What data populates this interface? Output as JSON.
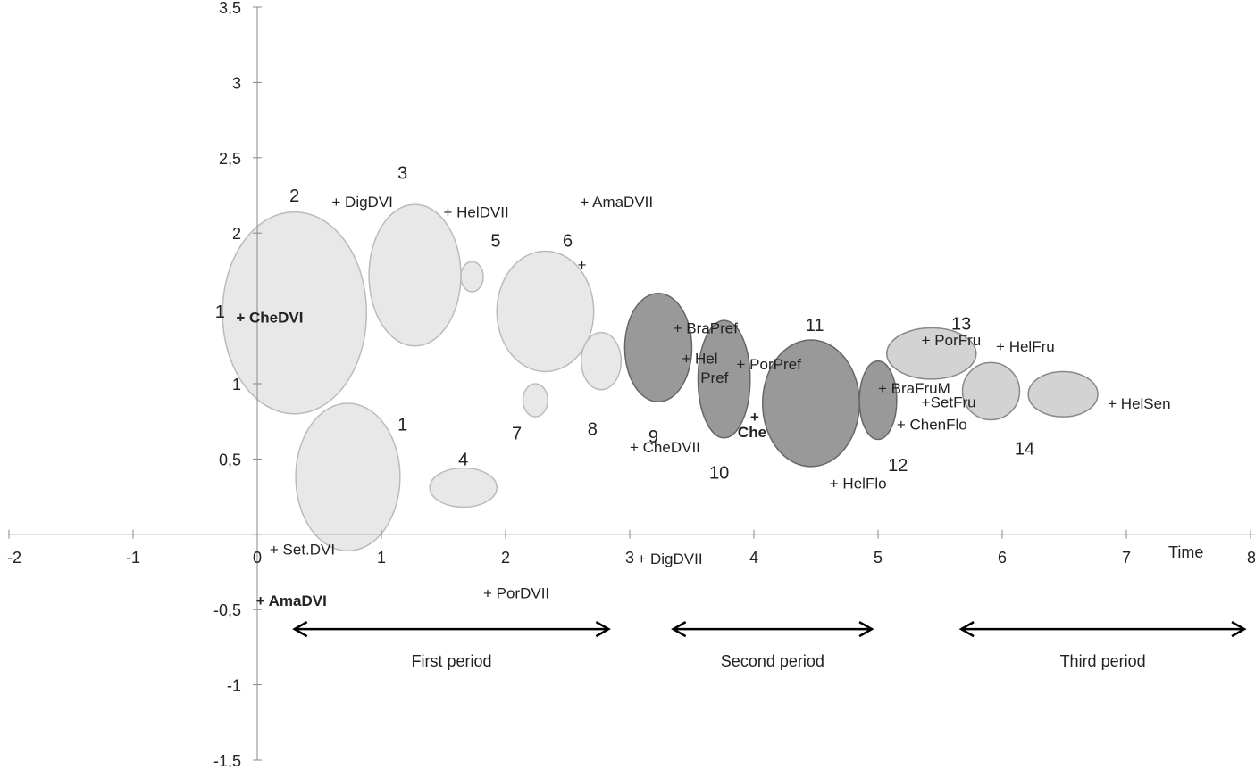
{
  "chart_data": {
    "type": "bubble",
    "x_axis": {
      "title": "Time",
      "range": [
        -2,
        8
      ],
      "ticks": [
        "-2",
        "-1",
        "0",
        "1",
        "2",
        "3",
        "4",
        "5",
        "6",
        "7",
        "8"
      ]
    },
    "y_axis": {
      "range": [
        -1.5,
        3.5
      ],
      "ticks": [
        "3,5",
        "3",
        "2,5",
        "2",
        "1",
        "0,5",
        "0",
        "-0,5",
        "-1",
        "-1,5"
      ]
    },
    "grid": false,
    "legend": "none",
    "bubbles": [
      {
        "label": "2",
        "cx": 0.3,
        "cy": 1.47,
        "rx": 0.58,
        "ry": 0.67,
        "fill": "#e8e8e8",
        "stroke": "#bbbbbb"
      },
      {
        "label": "1",
        "cx": 0.73,
        "cy": 0.38,
        "rx": 0.42,
        "ry": 0.49,
        "fill": "#e8e8e8",
        "stroke": "#bbbbbb"
      },
      {
        "label": "3",
        "cx": 1.27,
        "cy": 1.72,
        "rx": 0.37,
        "ry": 0.47,
        "fill": "#e8e8e8",
        "stroke": "#bbbbbb"
      },
      {
        "label": "4",
        "cx": 1.66,
        "cy": 0.31,
        "rx": 0.27,
        "ry": 0.13,
        "fill": "#e8e8e8",
        "stroke": "#bbbbbb"
      },
      {
        "label": "5",
        "cx": 1.73,
        "cy": 1.71,
        "rx": 0.09,
        "ry": 0.1,
        "fill": "#e8e8e8",
        "stroke": "#bbbbbb"
      },
      {
        "label": "6",
        "cx": 2.32,
        "cy": 1.48,
        "rx": 0.39,
        "ry": 0.4,
        "fill": "#e8e8e8",
        "stroke": "#bbbbbb"
      },
      {
        "label": "7",
        "cx": 2.24,
        "cy": 0.89,
        "rx": 0.1,
        "ry": 0.11,
        "fill": "#e8e8e8",
        "stroke": "#bbbbbb"
      },
      {
        "label": "8",
        "cx": 2.77,
        "cy": 1.15,
        "rx": 0.16,
        "ry": 0.19,
        "fill": "#e8e8e8",
        "stroke": "#bbbbbb"
      },
      {
        "label": "9",
        "cx": 3.23,
        "cy": 1.24,
        "rx": 0.27,
        "ry": 0.36,
        "fill": "#999999",
        "stroke": "#666666"
      },
      {
        "label": "10",
        "cx": 3.76,
        "cy": 1.03,
        "rx": 0.21,
        "ry": 0.39,
        "fill": "#999999",
        "stroke": "#666666"
      },
      {
        "label": "11",
        "cx": 4.46,
        "cy": 0.87,
        "rx": 0.39,
        "ry": 0.42,
        "fill": "#999999",
        "stroke": "#666666"
      },
      {
        "label": "12",
        "cx": 5.0,
        "cy": 0.89,
        "rx": 0.15,
        "ry": 0.26,
        "fill": "#999999",
        "stroke": "#666666"
      },
      {
        "label": "13",
        "cx": 5.43,
        "cy": 1.2,
        "rx": 0.36,
        "ry": 0.17,
        "fill": "#d3d3d3",
        "stroke": "#888888"
      },
      {
        "label": "14",
        "cx": 5.91,
        "cy": 0.95,
        "rx": 0.23,
        "ry": 0.19,
        "fill": "#d3d3d3",
        "stroke": "#888888"
      },
      {
        "label": "",
        "cx": 6.49,
        "cy": 0.93,
        "rx": 0.28,
        "ry": 0.15,
        "fill": "#d3d3d3",
        "stroke": "#888888"
      }
    ],
    "bubble_labels": [
      {
        "text": "2",
        "x": 0.3,
        "y": 2.25
      },
      {
        "text": "3",
        "x": 1.17,
        "y": 2.4
      },
      {
        "text": "5",
        "x": 1.92,
        "y": 1.95
      },
      {
        "text": "6",
        "x": 2.5,
        "y": 1.95
      },
      {
        "text": "1",
        "x": -0.3,
        "y": 1.48
      },
      {
        "text": "1",
        "x": 1.17,
        "y": 0.73
      },
      {
        "text": "4",
        "x": 1.66,
        "y": 0.5
      },
      {
        "text": "7",
        "x": 2.09,
        "y": 0.67
      },
      {
        "text": "8",
        "x": 2.7,
        "y": 0.7
      },
      {
        "text": "9",
        "x": 3.19,
        "y": 0.65
      },
      {
        "text": "10",
        "x": 3.72,
        "y": 0.41
      },
      {
        "text": "11",
        "x": 4.49,
        "y": 1.39
      },
      {
        "text": "12",
        "x": 5.16,
        "y": 0.46
      },
      {
        "text": "13",
        "x": 5.67,
        "y": 1.4
      },
      {
        "text": "14",
        "x": 6.18,
        "y": 0.57
      }
    ],
    "annotations": [
      {
        "text": "+ DigDVI",
        "x": 0.6,
        "y": 2.21
      },
      {
        "text": "+ HelDVII",
        "x": 1.5,
        "y": 2.14
      },
      {
        "text": "+ AmaDVII",
        "x": 2.6,
        "y": 2.21
      },
      {
        "text": "+",
        "x": 2.58,
        "y": 1.79
      },
      {
        "text": "+ CheDVI",
        "x": -0.17,
        "y": 1.44,
        "bold_marker": true
      },
      {
        "text": "+ BraPref",
        "x": 3.35,
        "y": 1.37
      },
      {
        "text": "+ Hel",
        "x": 3.42,
        "y": 1.17
      },
      {
        "text": "Pref",
        "x": 3.57,
        "y": 1.04
      },
      {
        "text": "+ PorPref",
        "x": 3.86,
        "y": 1.13
      },
      {
        "text": "+",
        "x": 3.97,
        "y": 0.78,
        "bold_marker": true
      },
      {
        "text": "Che",
        "x": 3.87,
        "y": 0.68,
        "bold": true
      },
      {
        "text": "+ CheDVII",
        "x": 3.0,
        "y": 0.58
      },
      {
        "text": "+ HelFlo",
        "x": 4.61,
        "y": 0.34
      },
      {
        "text": "+ BraFruM",
        "x": 5.0,
        "y": 0.97
      },
      {
        "text": "+SetFru",
        "x": 5.35,
        "y": 0.88
      },
      {
        "text": "+ ChenFlo",
        "x": 5.15,
        "y": 0.73
      },
      {
        "text": "+ PorFru",
        "x": 5.35,
        "y": 1.29
      },
      {
        "text": "+ HelFru",
        "x": 5.95,
        "y": 1.25
      },
      {
        "text": "+ HelSen",
        "x": 6.85,
        "y": 0.87
      },
      {
        "text": "+ Set.DVI",
        "x": 0.1,
        "y": -0.1
      },
      {
        "text": "+ AmaDVI",
        "x": -0.01,
        "y": -0.44,
        "bold_marker": true
      },
      {
        "text": "+ PorDVII",
        "x": 1.82,
        "y": -0.39
      },
      {
        "text": "+ DigDVII",
        "x": 3.06,
        "y": -0.16
      }
    ],
    "periods": [
      {
        "label": "First period",
        "from": 0.3,
        "to": 2.83
      },
      {
        "label": "Second period",
        "from": 3.35,
        "to": 4.95
      },
      {
        "label": "Third period",
        "from": 5.67,
        "to": 7.95
      }
    ]
  }
}
